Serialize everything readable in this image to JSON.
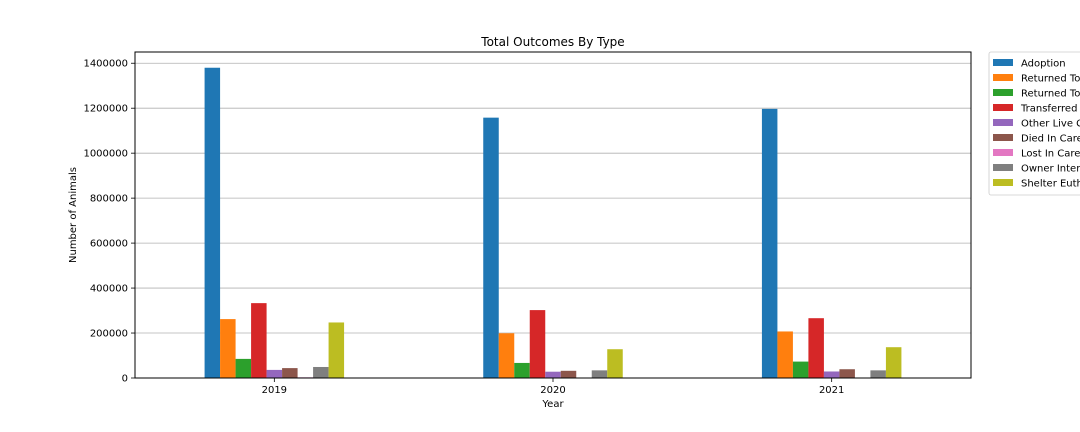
{
  "chart_data": {
    "type": "bar",
    "title": "Total Outcomes By Type",
    "xlabel": "Year",
    "ylabel": "Number of Animals",
    "categories": [
      "2019",
      "2020",
      "2021"
    ],
    "ylim": [
      0,
      1450000
    ],
    "yticks": [
      0,
      200000,
      400000,
      600000,
      800000,
      1000000,
      1200000,
      1400000
    ],
    "ytick_labels": [
      "0",
      "200000",
      "400000",
      "600000",
      "800000",
      "1000000",
      "1200000",
      "1400000"
    ],
    "grid": "y",
    "legend_position": "outside-right",
    "series": [
      {
        "name": "Adoption",
        "color": "#1f77b4",
        "values": [
          1380000,
          1158000,
          1197000
        ]
      },
      {
        "name": "Returned To",
        "color": "#ff7f0e",
        "values": [
          262000,
          199000,
          207000
        ]
      },
      {
        "name": "Returned To",
        "color": "#2ca02c",
        "values": [
          85000,
          67000,
          73000
        ]
      },
      {
        "name": "Transferred",
        "color": "#d62728",
        "values": [
          333000,
          302000,
          266000
        ]
      },
      {
        "name": "Other Live C",
        "color": "#9467bd",
        "values": [
          36000,
          28000,
          29000
        ]
      },
      {
        "name": "Died In Care",
        "color": "#8c564b",
        "values": [
          44000,
          32000,
          39000
        ]
      },
      {
        "name": "Lost In Care",
        "color": "#e377c2",
        "values": [
          3000,
          2000,
          2000
        ]
      },
      {
        "name": "Owner Inter",
        "color": "#7f7f7f",
        "values": [
          49000,
          34000,
          34000
        ]
      },
      {
        "name": "Shelter Euth",
        "color": "#bcbd22",
        "values": [
          247000,
          128000,
          137000
        ]
      }
    ]
  }
}
